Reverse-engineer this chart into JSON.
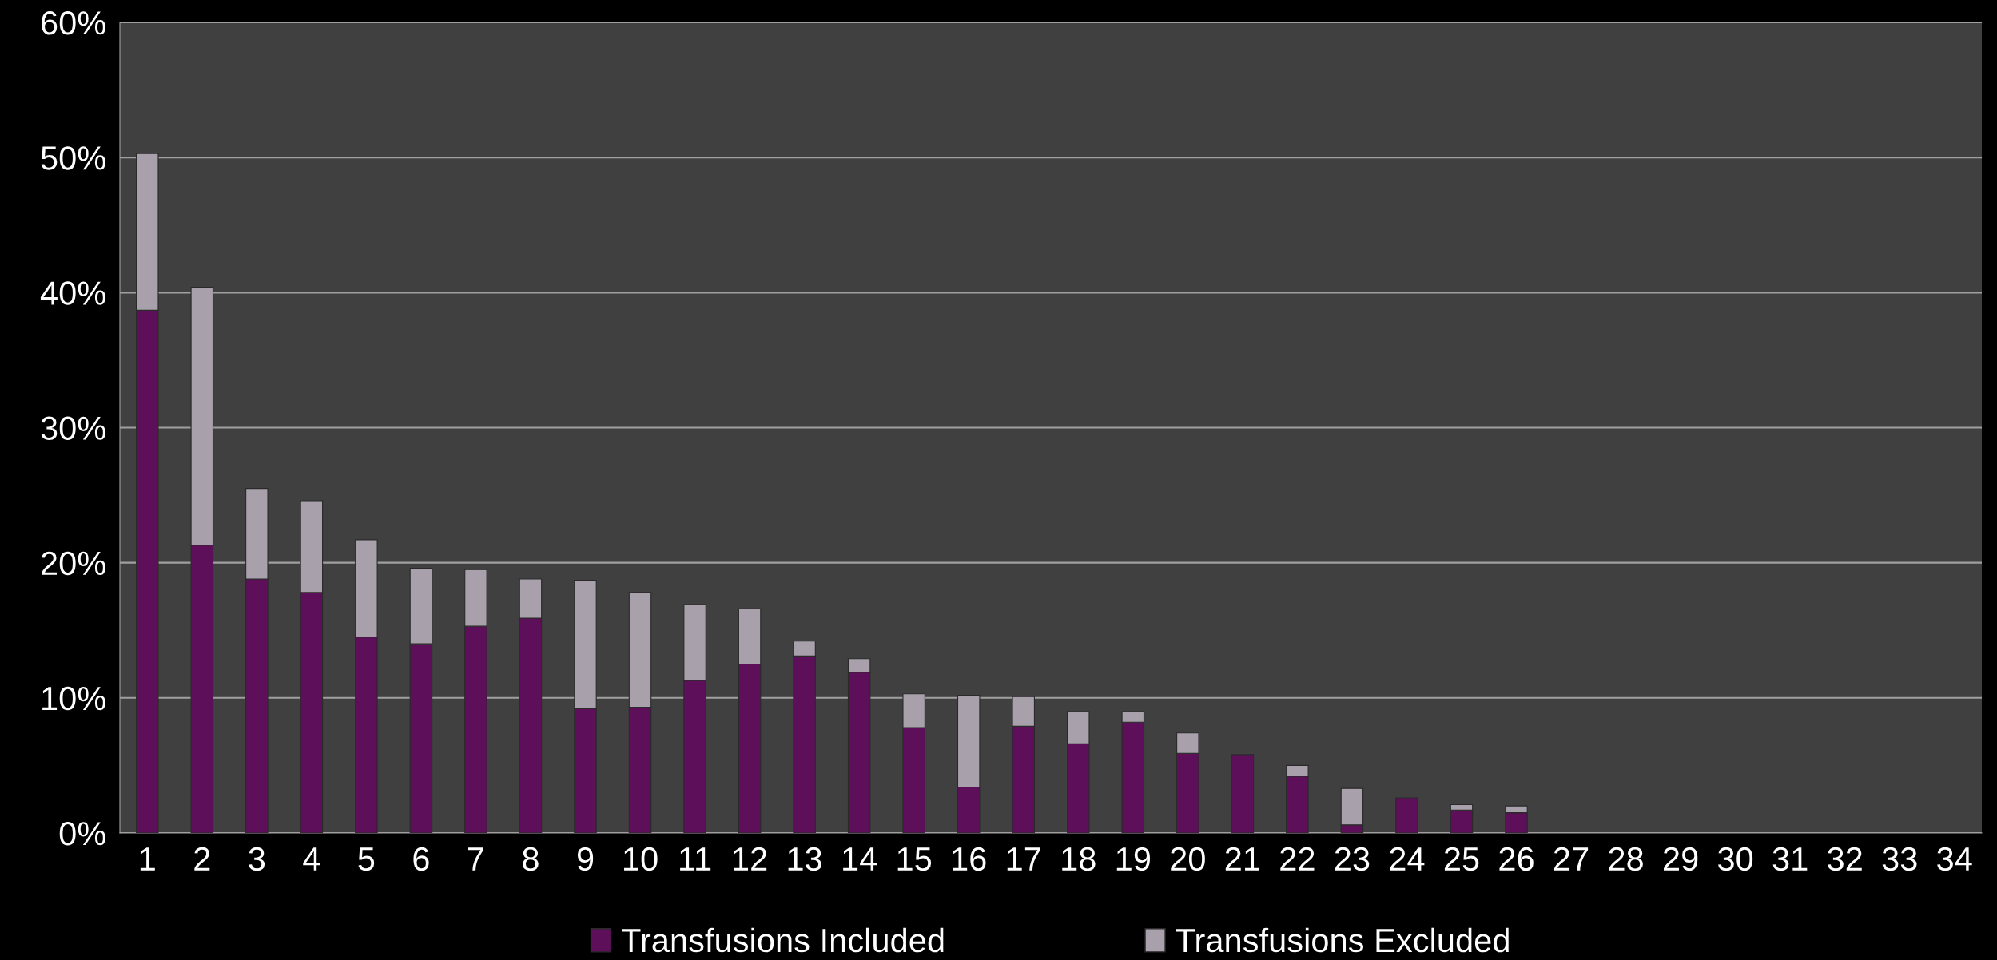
{
  "chart_data": {
    "type": "bar",
    "stacked": true,
    "categories": [
      "1",
      "2",
      "3",
      "4",
      "5",
      "6",
      "7",
      "8",
      "9",
      "10",
      "11",
      "12",
      "13",
      "14",
      "15",
      "16",
      "17",
      "18",
      "19",
      "20",
      "21",
      "22",
      "23",
      "24",
      "25",
      "26",
      "27",
      "28",
      "29",
      "30",
      "31",
      "32",
      "33",
      "34"
    ],
    "series": [
      {
        "name": "Transfusions Included",
        "color": "#5e0f5a",
        "values": [
          38.7,
          21.3,
          18.8,
          17.8,
          14.5,
          14.0,
          15.3,
          15.9,
          9.2,
          9.3,
          11.3,
          12.5,
          13.1,
          11.9,
          7.8,
          3.4,
          7.9,
          6.6,
          8.2,
          5.9,
          5.8,
          4.2,
          0.6,
          2.6,
          1.7,
          1.5,
          null,
          null,
          null,
          null,
          null,
          null,
          null,
          null
        ]
      },
      {
        "name": "Transfusions Excluded",
        "color": "#a8a0aa",
        "values": [
          11.6,
          19.1,
          6.7,
          6.8,
          7.2,
          5.6,
          4.2,
          2.9,
          9.5,
          8.5,
          5.6,
          4.1,
          1.1,
          1.0,
          2.5,
          6.8,
          2.2,
          2.4,
          0.8,
          1.5,
          0,
          0.8,
          2.7,
          0,
          0.4,
          0.5,
          null,
          null,
          null,
          null,
          null,
          null,
          null,
          null
        ]
      }
    ],
    "ylim": [
      0,
      60
    ],
    "yticks": [
      {
        "value": 0,
        "label": "0%"
      },
      {
        "value": 10,
        "label": "10%"
      },
      {
        "value": 20,
        "label": "20%"
      },
      {
        "value": 30,
        "label": "30%"
      },
      {
        "value": 40,
        "label": "40%"
      },
      {
        "value": 50,
        "label": "50%"
      },
      {
        "value": 60,
        "label": "60%"
      }
    ],
    "grid": "y",
    "legend": "bottom"
  }
}
